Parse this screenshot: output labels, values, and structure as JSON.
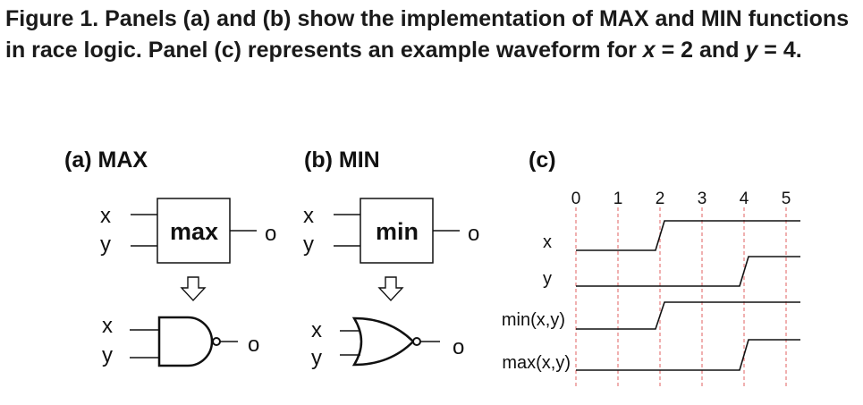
{
  "caption": {
    "lead": "Figure 1. Panels (a) and (b) show the implementation of MAX and MIN functions in race logic. Panel (c) represents an example waveform for ",
    "var_x": "x",
    "eq_x": " = 2 and ",
    "var_y": "y",
    "eq_y": " = 4."
  },
  "panel_a": {
    "title": "(a) MAX",
    "box_label": "max",
    "input_x": "x",
    "input_y": "y",
    "output": "o",
    "gate_input_x": "x",
    "gate_input_y": "y",
    "gate_output": "o",
    "gate_type": "and-gate",
    "arrow": "⇩"
  },
  "panel_b": {
    "title": "(b) MIN",
    "box_label": "min",
    "input_x": "x",
    "input_y": "y",
    "output": "o",
    "gate_input_x": "x",
    "gate_input_y": "y",
    "gate_output": "o",
    "gate_type": "or-gate",
    "arrow": "⇩"
  },
  "panel_c": {
    "title": "(c)",
    "time_ticks": [
      "0",
      "1",
      "2",
      "3",
      "4",
      "5"
    ],
    "signals": [
      {
        "label": "x",
        "rise_time": 2
      },
      {
        "label": "y",
        "rise_time": 4
      },
      {
        "label": "min(x,y)",
        "rise_time": 2
      },
      {
        "label": "max(x,y)",
        "rise_time": 4
      }
    ],
    "colors": {
      "gridline": "#e06060",
      "trace": "#111111"
    }
  }
}
